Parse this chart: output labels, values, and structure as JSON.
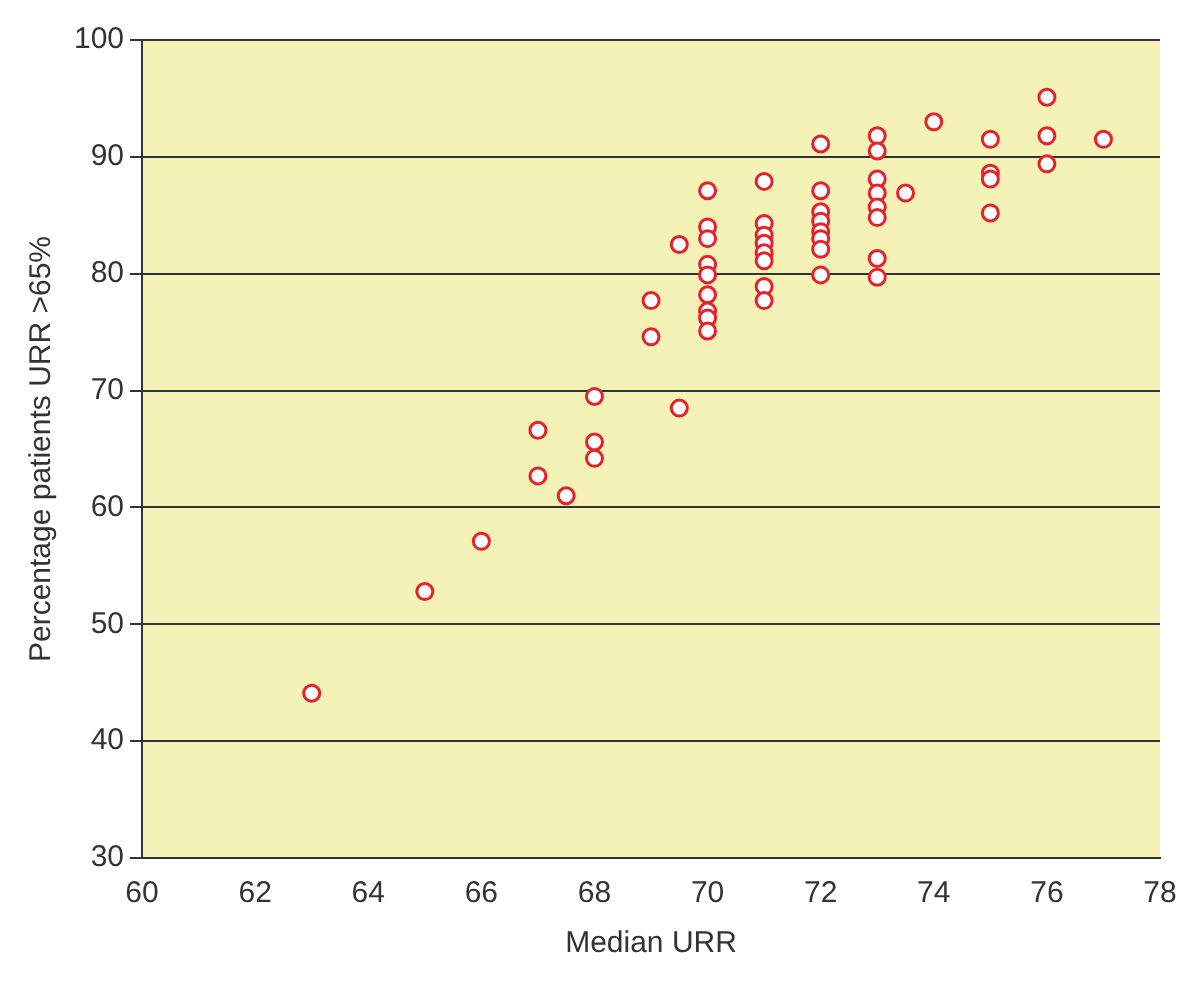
{
  "chart_data": {
    "type": "scatter",
    "xlabel": "Median URR",
    "ylabel": "Percentage patients URR >65%",
    "x": [
      63,
      65,
      66,
      67,
      67,
      67.5,
      68,
      68,
      68,
      69,
      69,
      69.5,
      69.5,
      70,
      70,
      70,
      70,
      70,
      70,
      70,
      70,
      70,
      71,
      71,
      71,
      71,
      71,
      71,
      71,
      71,
      72,
      72,
      72,
      72,
      72,
      72,
      72,
      72,
      73,
      73,
      73,
      73,
      73,
      73,
      73,
      73,
      73.5,
      74,
      75,
      75,
      75,
      75,
      76,
      76,
      76,
      77
    ],
    "values": [
      44.1,
      52.8,
      57.1,
      66.6,
      62.7,
      61,
      69.5,
      65.6,
      64.2,
      77.7,
      74.6,
      82.5,
      68.5,
      87.1,
      84,
      83,
      80.8,
      79.9,
      78.2,
      76.8,
      76.2,
      75.1,
      87.9,
      84.3,
      83.3,
      82.6,
      81.8,
      81.1,
      78.9,
      77.7,
      91.1,
      87.1,
      85.3,
      84.5,
      83.6,
      83,
      82.1,
      79.9,
      91.8,
      90.5,
      88.1,
      86.9,
      85.7,
      84.8,
      81.3,
      79.7,
      86.9,
      93,
      91.5,
      88.6,
      88.1,
      85.2,
      95.1,
      91.8,
      89.4,
      91.5
    ],
    "color": "#e8202a",
    "marker": "circle",
    "xlim": [
      60,
      78
    ],
    "xticks": [
      60,
      62,
      64,
      66,
      68,
      70,
      72,
      74,
      76,
      78
    ],
    "ylim": [
      30,
      100
    ],
    "yticks": [
      30,
      40,
      50,
      60,
      70,
      80,
      90,
      100
    ],
    "grid": "y"
  }
}
